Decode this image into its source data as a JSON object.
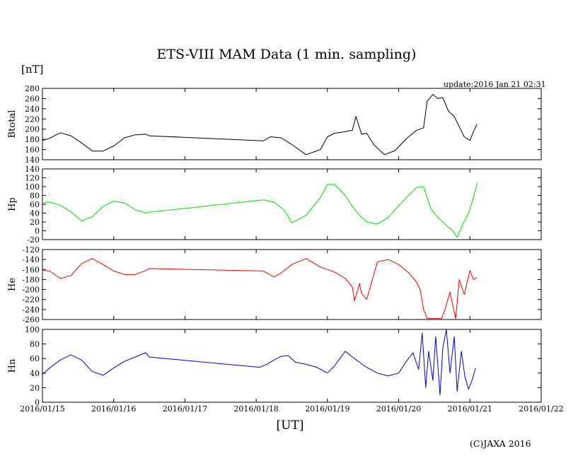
{
  "header": {
    "title": "ETS-VIII MAM Data (1 min. sampling)",
    "unit": "[nT]",
    "update": "update:2016 Jan 21 02:31",
    "xlabel": "[UT]",
    "copyright": "(C)JAXA 2016"
  },
  "colors": {
    "Btotal": "#000000",
    "Hp": "#00dd00",
    "He": "#ee0000",
    "Hn": "#0000cc"
  },
  "x_axis": {
    "range": [
      0,
      7
    ],
    "ticks": [
      0,
      1,
      2,
      3,
      4,
      5,
      6,
      7
    ],
    "tick_labels": [
      "2016/01/15",
      "2016/01/16",
      "2016/01/17",
      "2016/01/18",
      "2016/01/19",
      "2016/01/20",
      "2016/01/21",
      "2016/01/22"
    ]
  },
  "chart_data": [
    {
      "type": "line",
      "panel": "Btotal",
      "ylabel": "Btotal",
      "ylim": [
        140,
        280
      ],
      "yticks": [
        140,
        160,
        180,
        200,
        220,
        240,
        260,
        280
      ],
      "series": [
        {
          "name": "Btotal",
          "x": [
            0,
            0.1,
            0.25,
            0.4,
            0.55,
            0.7,
            0.85,
            1.0,
            1.15,
            1.3,
            1.45,
            1.5,
            3.1,
            3.2,
            3.35,
            3.5,
            3.7,
            3.9,
            4.0,
            4.1,
            4.25,
            4.35,
            4.4,
            4.48,
            4.55,
            4.65,
            4.8,
            4.95,
            5.1,
            5.25,
            5.3,
            5.35,
            5.4,
            5.48,
            5.55,
            5.62,
            5.7,
            5.78,
            5.85,
            5.92,
            6.0,
            6.05,
            6.1
          ],
          "y": [
            178,
            182,
            193,
            187,
            173,
            157,
            157,
            167,
            183,
            189,
            190,
            187,
            177,
            185,
            183,
            170,
            150,
            160,
            185,
            192,
            195,
            198,
            225,
            190,
            192,
            170,
            150,
            158,
            180,
            198,
            200,
            203,
            255,
            268,
            260,
            262,
            235,
            225,
            205,
            185,
            178,
            195,
            210
          ]
        }
      ]
    },
    {
      "type": "line",
      "panel": "Hp",
      "ylabel": "Hp",
      "ylim": [
        -20,
        140
      ],
      "yticks": [
        -20,
        0,
        20,
        40,
        60,
        80,
        100,
        120,
        140
      ],
      "series": [
        {
          "name": "Hp",
          "x": [
            0,
            0.1,
            0.25,
            0.4,
            0.55,
            0.7,
            0.85,
            1.0,
            1.15,
            1.3,
            1.45,
            1.5,
            3.1,
            3.25,
            3.4,
            3.5,
            3.7,
            3.9,
            4.0,
            4.1,
            4.25,
            4.35,
            4.45,
            4.55,
            4.7,
            4.85,
            5.0,
            5.15,
            5.25,
            5.35,
            5.45,
            5.55,
            5.62,
            5.68,
            5.75,
            5.82,
            5.9,
            5.98,
            6.05,
            6.1
          ],
          "y": [
            63,
            65,
            58,
            43,
            22,
            32,
            55,
            67,
            63,
            48,
            40,
            42,
            70,
            65,
            46,
            18,
            35,
            75,
            105,
            105,
            80,
            55,
            35,
            20,
            15,
            30,
            57,
            82,
            98,
            100,
            50,
            30,
            20,
            10,
            2,
            -15,
            15,
            40,
            75,
            108
          ]
        }
      ]
    },
    {
      "type": "line",
      "panel": "He",
      "ylabel": "He",
      "ylim": [
        -260,
        -120
      ],
      "yticks": [
        -260,
        -240,
        -220,
        -200,
        -180,
        -160,
        -140,
        -120
      ],
      "series": [
        {
          "name": "He",
          "x": [
            0,
            0.1,
            0.25,
            0.4,
            0.55,
            0.7,
            0.85,
            1.0,
            1.15,
            1.3,
            1.45,
            1.5,
            3.1,
            3.25,
            3.35,
            3.5,
            3.7,
            3.9,
            4.0,
            4.1,
            4.25,
            4.35,
            4.38,
            4.45,
            4.48,
            4.55,
            4.7,
            4.85,
            5.0,
            5.15,
            5.25,
            5.3,
            5.35,
            5.4,
            5.5,
            5.6,
            5.65,
            5.72,
            5.8,
            5.85,
            5.92,
            6.0,
            6.05,
            6.1
          ],
          "y": [
            -162,
            -163,
            -178,
            -172,
            -148,
            -138,
            -150,
            -163,
            -170,
            -170,
            -162,
            -158,
            -163,
            -175,
            -167,
            -150,
            -138,
            -155,
            -160,
            -165,
            -178,
            -195,
            -223,
            -188,
            -208,
            -220,
            -145,
            -140,
            -150,
            -168,
            -185,
            -200,
            -240,
            -258,
            -258,
            -258,
            -240,
            -205,
            -258,
            -180,
            -210,
            -162,
            -180,
            -176
          ]
        }
      ]
    },
    {
      "type": "line",
      "panel": "Hn",
      "ylabel": "Hn",
      "ylim": [
        0,
        100
      ],
      "yticks": [
        0,
        20,
        40,
        60,
        80,
        100
      ],
      "series": [
        {
          "name": "Hn",
          "x": [
            0,
            0.1,
            0.25,
            0.4,
            0.55,
            0.7,
            0.85,
            1.0,
            1.15,
            1.3,
            1.45,
            1.5,
            3.05,
            3.15,
            3.25,
            3.35,
            3.45,
            3.55,
            3.7,
            3.85,
            4.0,
            4.1,
            4.25,
            4.35,
            4.45,
            4.55,
            4.7,
            4.85,
            5.0,
            5.1,
            5.2,
            5.28,
            5.33,
            5.38,
            5.42,
            5.48,
            5.52,
            5.58,
            5.62,
            5.67,
            5.72,
            5.78,
            5.82,
            5.88,
            5.93,
            5.98,
            6.03,
            6.08
          ],
          "y": [
            38,
            47,
            58,
            65,
            58,
            42,
            37,
            47,
            56,
            62,
            68,
            62,
            48,
            52,
            58,
            63,
            64,
            55,
            52,
            48,
            40,
            50,
            70,
            62,
            55,
            48,
            40,
            36,
            40,
            55,
            68,
            45,
            95,
            20,
            70,
            30,
            90,
            10,
            75,
            100,
            40,
            90,
            15,
            70,
            35,
            18,
            30,
            47
          ]
        }
      ]
    }
  ]
}
